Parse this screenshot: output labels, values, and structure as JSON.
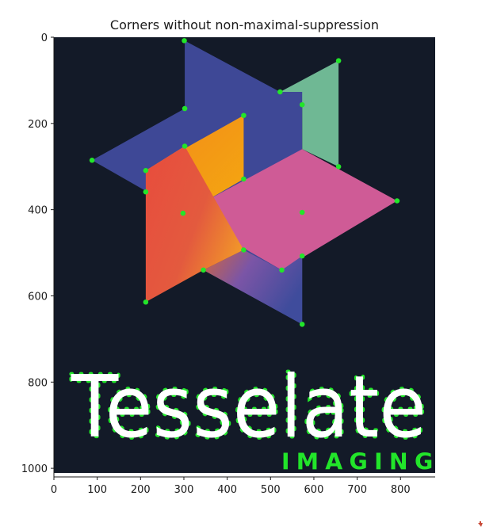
{
  "title": "Corners without non-maximal-suppression",
  "axes": {
    "x": {
      "range": [
        0,
        880
      ],
      "ticks": [
        0,
        100,
        200,
        300,
        400,
        500,
        600,
        700,
        800
      ]
    },
    "y": {
      "range": [
        1020,
        0
      ],
      "ticks": [
        0,
        200,
        400,
        600,
        800,
        1000
      ]
    }
  },
  "image": {
    "background": "#131a28",
    "wordmark": "Tesselate",
    "subtitle": "IMAGING",
    "colors": {
      "blue": "#3e4896",
      "green": "#6fb894",
      "orange": "#f29d12",
      "red": "#e6503a",
      "pink": "#cf5b96",
      "corner": "#22e52a",
      "wordmark": "#ffffff"
    }
  },
  "corner_points": [
    [
      301,
      8
    ],
    [
      657,
      55
    ],
    [
      522,
      128
    ],
    [
      573,
      158
    ],
    [
      302,
      167
    ],
    [
      438,
      183
    ],
    [
      88,
      288
    ],
    [
      302,
      255
    ],
    [
      212,
      312
    ],
    [
      212,
      362
    ],
    [
      438,
      332
    ],
    [
      657,
      303
    ],
    [
      298,
      412
    ],
    [
      573,
      410
    ],
    [
      792,
      383
    ],
    [
      438,
      498
    ],
    [
      345,
      545
    ],
    [
      526,
      545
    ],
    [
      573,
      512
    ],
    [
      212,
      620
    ],
    [
      573,
      672
    ]
  ]
}
